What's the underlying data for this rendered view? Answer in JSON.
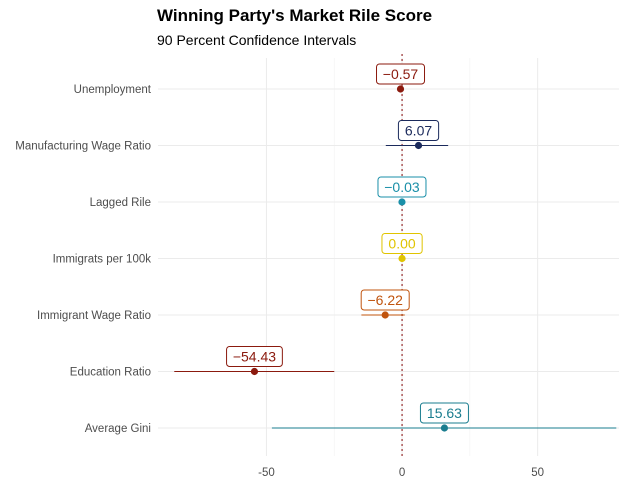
{
  "chart_data": {
    "type": "dot-range",
    "title": "Winning Party's Market Rile Score",
    "subtitle": "90 Percent Confidence Intervals",
    "xlabel": "",
    "ylabel": "",
    "xlim": [
      -90,
      80
    ],
    "xticks": [
      {
        "value": -50,
        "label": "-50"
      },
      {
        "value": 0,
        "label": "0"
      },
      {
        "value": 50,
        "label": "50"
      }
    ],
    "reference_line": {
      "x": 0,
      "style": "dotted",
      "color": "#8b1a1a"
    },
    "grid": true,
    "series": [
      {
        "term": "Unemployment",
        "estimate": -0.57,
        "label": "−0.57",
        "ci_low": -0.57,
        "ci_high": -0.57,
        "color": "#8b1a0e"
      },
      {
        "term": "Manufacturing Wage Ratio",
        "estimate": 6.07,
        "label": "6.07",
        "ci_low": -6,
        "ci_high": 17,
        "color": "#1b2a5c"
      },
      {
        "term": "Lagged Rile",
        "estimate": -0.03,
        "label": "−0.03",
        "ci_low": -0.03,
        "ci_high": -0.03,
        "color": "#1a8fa8"
      },
      {
        "term": "Immigrats per 100k",
        "estimate": 0.0,
        "label": "0.00",
        "ci_low": 0.0,
        "ci_high": 0.0,
        "color": "#e0c400"
      },
      {
        "term": "Immigrant Wage Ratio",
        "estimate": -6.22,
        "label": "−6.22",
        "ci_low": -15,
        "ci_high": 1,
        "color": "#c0540e"
      },
      {
        "term": "Education Ratio",
        "estimate": -54.43,
        "label": "−54.43",
        "ci_low": -84,
        "ci_high": -25,
        "color": "#8b1a0e"
      },
      {
        "term": "Average Gini",
        "estimate": 15.63,
        "label": "15.63",
        "ci_low": -48,
        "ci_high": 79,
        "color": "#1a7d8f"
      }
    ]
  }
}
